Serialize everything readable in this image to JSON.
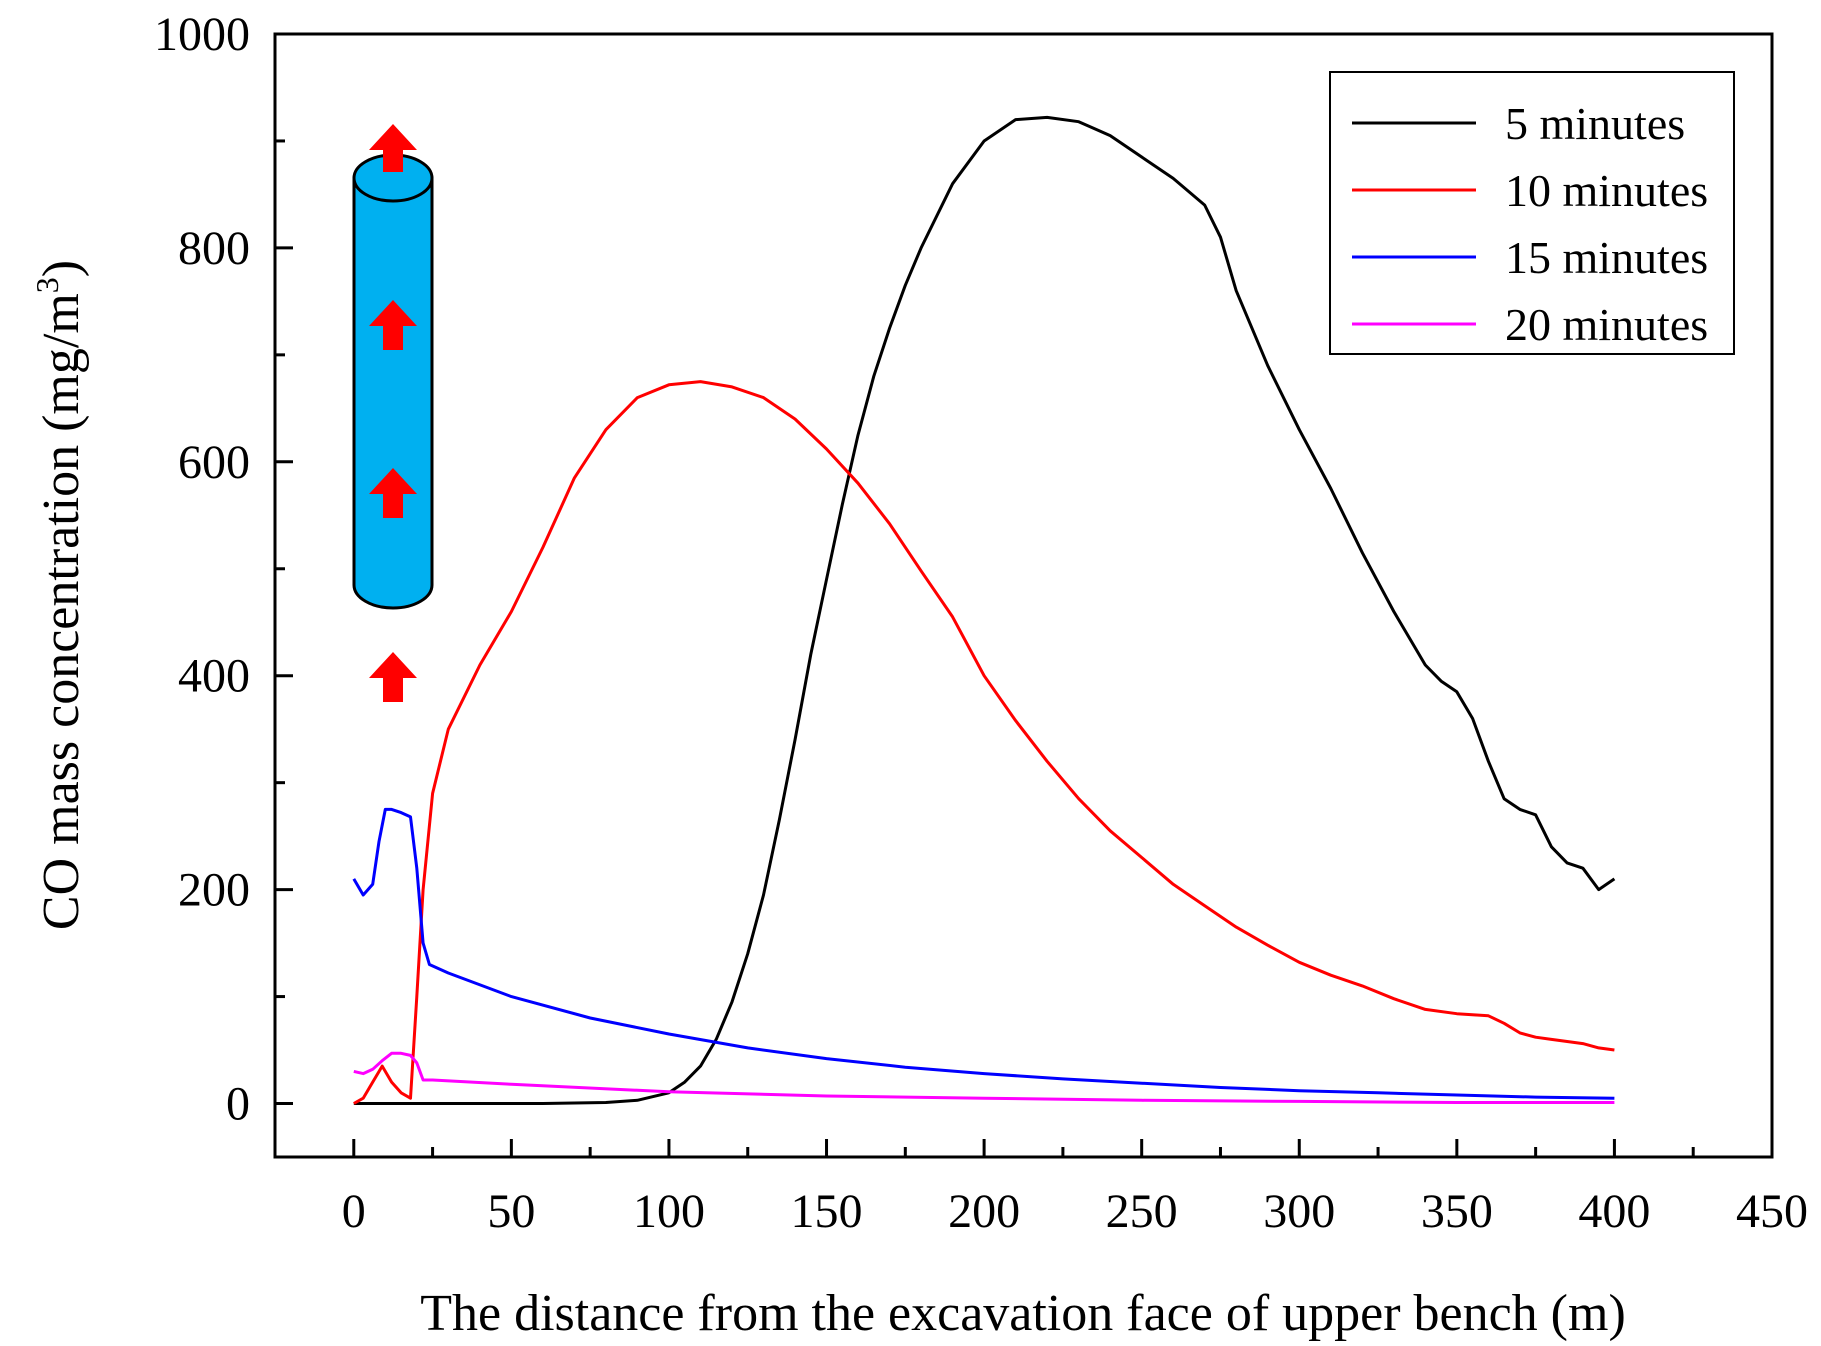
{
  "chart_data": {
    "type": "line",
    "title": "",
    "xlabel": "The distance from the excavation face of upper bench (m)",
    "ylabel_main": "CO mass concentration (mg/m",
    "ylabel_sup": "3",
    "ylabel_close": ")",
    "xlim": [
      -25,
      450
    ],
    "ylim": [
      -50,
      1000
    ],
    "xticks": [
      0,
      50,
      100,
      150,
      200,
      250,
      300,
      350,
      400,
      450
    ],
    "yticks": [
      0,
      200,
      400,
      600,
      800,
      1000
    ],
    "xtick_labels": [
      "0",
      "50",
      "100",
      "150",
      "200",
      "250",
      "300",
      "350",
      "400",
      "450"
    ],
    "ytick_labels": [
      "0",
      "200",
      "400",
      "600",
      "800",
      "1000"
    ],
    "legend_position": "top-right",
    "series": [
      {
        "name": "5 minutes",
        "color": "#000000",
        "x": [
          0,
          20,
          40,
          60,
          80,
          90,
          100,
          105,
          110,
          115,
          120,
          125,
          130,
          135,
          140,
          145,
          150,
          155,
          160,
          165,
          170,
          175,
          180,
          190,
          200,
          210,
          220,
          230,
          240,
          250,
          260,
          270,
          275,
          280,
          290,
          300,
          310,
          320,
          330,
          340,
          345,
          350,
          355,
          360,
          365,
          370,
          375,
          380,
          385,
          390,
          395,
          400
        ],
        "y": [
          0,
          0,
          0,
          0,
          1,
          3,
          10,
          20,
          35,
          60,
          95,
          140,
          195,
          265,
          340,
          420,
          490,
          560,
          625,
          680,
          725,
          765,
          800,
          860,
          900,
          920,
          922,
          918,
          905,
          885,
          865,
          840,
          810,
          760,
          690,
          630,
          575,
          515,
          460,
          410,
          395,
          385,
          360,
          320,
          285,
          275,
          270,
          240,
          225,
          220,
          200,
          210
        ]
      },
      {
        "name": "10 minutes",
        "color": "#ff0000",
        "x": [
          0,
          3,
          6,
          9,
          12,
          15,
          18,
          20,
          22,
          25,
          30,
          40,
          50,
          60,
          70,
          80,
          90,
          100,
          110,
          120,
          130,
          140,
          150,
          160,
          170,
          180,
          190,
          200,
          210,
          220,
          230,
          240,
          250,
          260,
          270,
          280,
          290,
          300,
          310,
          320,
          330,
          340,
          350,
          360,
          365,
          370,
          375,
          380,
          390,
          395,
          400
        ],
        "y": [
          0,
          5,
          20,
          35,
          20,
          10,
          5,
          100,
          200,
          290,
          350,
          410,
          460,
          520,
          585,
          630,
          660,
          672,
          675,
          670,
          660,
          640,
          612,
          580,
          542,
          498,
          455,
          400,
          358,
          320,
          285,
          255,
          230,
          205,
          185,
          165,
          148,
          132,
          120,
          110,
          98,
          88,
          84,
          82,
          75,
          66,
          62,
          60,
          56,
          52,
          50
        ]
      },
      {
        "name": "15 minutes",
        "color": "#0000ff",
        "x": [
          0,
          3,
          6,
          8,
          10,
          12,
          15,
          18,
          20,
          22,
          24,
          30,
          50,
          75,
          100,
          125,
          150,
          175,
          200,
          225,
          250,
          275,
          300,
          325,
          350,
          375,
          400
        ],
        "y": [
          210,
          195,
          205,
          245,
          275,
          275,
          272,
          268,
          220,
          150,
          130,
          122,
          100,
          80,
          65,
          52,
          42,
          34,
          28,
          23,
          19,
          15,
          12,
          10,
          8,
          6,
          5
        ]
      },
      {
        "name": "20 minutes",
        "color": "#ff00ff",
        "x": [
          0,
          3,
          6,
          9,
          12,
          15,
          18,
          20,
          22,
          25,
          50,
          100,
          150,
          200,
          250,
          300,
          350,
          400
        ],
        "y": [
          30,
          28,
          32,
          40,
          47,
          47,
          45,
          38,
          22,
          22,
          18,
          11,
          7,
          5,
          3,
          2,
          1,
          1
        ]
      }
    ]
  }
}
